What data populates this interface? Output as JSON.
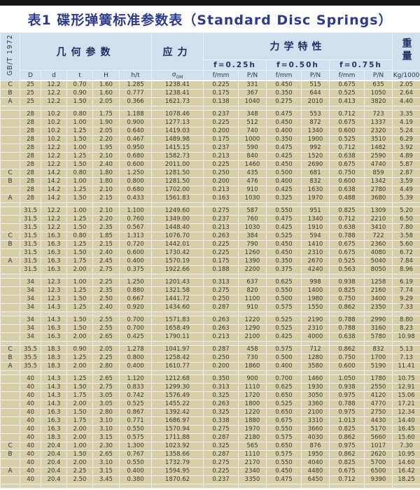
{
  "page": {
    "title": "表1 碟形弹簧标准参数表（Standard Disc Springs）"
  },
  "table": {
    "standard": "GB/T 1972",
    "header": {
      "geometry_label": "几何参数",
      "stress_label": "应力",
      "mechanical_label": "力学特性",
      "weight_label": "重量",
      "deflections": [
        "f=0.25h",
        "f=0.50h",
        "f=0.75h"
      ],
      "geo_cols": [
        "D",
        "d",
        "t",
        "H",
        "h/t"
      ],
      "sigma": "σ",
      "sigma_sub": "OM",
      "mech_cols": [
        "f/mm",
        "P/N",
        "f/mm",
        "P/N",
        "f/mm",
        "P/N"
      ],
      "weight_unit": "Kg/1000"
    },
    "rows": [
      {
        "label": "C",
        "cells": [
          "25",
          "12.2",
          "0.70",
          "1.60",
          "1.285",
          "1238.41",
          "0.225",
          "331",
          "0.450",
          "515",
          "0.675",
          "635",
          "2.05"
        ]
      },
      {
        "label": "B",
        "cells": [
          "25",
          "12.2",
          "0.90",
          "1.60",
          "0.777",
          "1238.41",
          "0.175",
          "367",
          "0.350",
          "644",
          "0.525",
          "1050",
          "2.64"
        ]
      },
      {
        "label": "A",
        "cells": [
          "25",
          "12.2",
          "1.50",
          "2.05",
          "0.366",
          "1621.73",
          "0.138",
          "1040",
          "0.275",
          "2010",
          "0.413",
          "3820",
          "4.40"
        ]
      },
      {
        "spacer": true
      },
      {
        "label": "",
        "cells": [
          "28",
          "10.2",
          "0.80",
          "1.75",
          "1.188",
          "1078.46",
          "0.237",
          "348",
          "0.475",
          "553",
          "0.712",
          "723",
          "3.35"
        ]
      },
      {
        "label": "",
        "cells": [
          "28",
          "10.2",
          "1.00",
          "1.90",
          "0.900",
          "1277.13",
          "0.225",
          "512",
          "0.450",
          "872",
          "0.675",
          "1337",
          "4.19"
        ]
      },
      {
        "label": "",
        "cells": [
          "28",
          "10.2",
          "1.25",
          "2.05",
          "0.640",
          "1419.03",
          "0.200",
          "740",
          "0.400",
          "1340",
          "0.600",
          "2320",
          "5.24"
        ]
      },
      {
        "label": "",
        "cells": [
          "28",
          "10.2",
          "1.50",
          "2.20",
          "0.467",
          "1489.98",
          "0.175",
          "1000",
          "0.350",
          "1900",
          "0.525",
          "3510",
          "6.29"
        ]
      },
      {
        "label": "",
        "cells": [
          "28",
          "12.2",
          "1.00",
          "1.95",
          "0.950",
          "1415.15",
          "0.237",
          "590",
          "0.475",
          "992",
          "0.712",
          "1482",
          "3.92"
        ]
      },
      {
        "label": "",
        "cells": [
          "28",
          "12.2",
          "1.25",
          "2.10",
          "0.680",
          "1582.73",
          "0.213",
          "840",
          "0.425",
          "1520",
          "0.638",
          "2590",
          "4.89"
        ]
      },
      {
        "label": "",
        "cells": [
          "28",
          "12.2",
          "1.50",
          "2.40",
          "0.600",
          "2011.00",
          "0.225",
          "1460",
          "0.450",
          "2690",
          "0.675",
          "4740",
          "5.87"
        ]
      },
      {
        "label": "C",
        "cells": [
          "28",
          "14.2",
          "0.80",
          "1.80",
          "1.250",
          "1281.50",
          "0.250",
          "435",
          "0.500",
          "681",
          "0.750",
          "859",
          "2.87"
        ]
      },
      {
        "label": "B",
        "cells": [
          "28",
          "14.2",
          "1.00",
          "1.80",
          "0.800",
          "1281.50",
          "0.200",
          "476",
          "0.400",
          "832",
          "0.600",
          "1342",
          "3.59"
        ]
      },
      {
        "label": "",
        "cells": [
          "28",
          "14.2",
          "1.25",
          "2.10",
          "0.680",
          "1702.00",
          "0.213",
          "910",
          "0.425",
          "1630",
          "0.638",
          "2780",
          "4.49"
        ]
      },
      {
        "label": "A",
        "cells": [
          "28",
          "14.2",
          "1.50",
          "2.15",
          "0.433",
          "1561.83",
          "0.163",
          "1030",
          "0.325",
          "1970",
          "0.488",
          "3680",
          "5.39"
        ]
      },
      {
        "spacer": true
      },
      {
        "label": "",
        "cells": [
          "31.5",
          "12.2",
          "1.00",
          "2.10",
          "1.100",
          "1249.60",
          "0.275",
          "587",
          "0.550",
          "951",
          "0.825",
          "1309",
          "5.20"
        ]
      },
      {
        "label": "",
        "cells": [
          "31.5",
          "12.2",
          "1.25",
          "2.20",
          "0.760",
          "1349.00",
          "0.237",
          "760",
          "0.475",
          "1340",
          "0.712",
          "2210",
          "6.50"
        ]
      },
      {
        "label": "",
        "cells": [
          "31.5",
          "12.2",
          "1.50",
          "2.35",
          "0.567",
          "1448.40",
          "0.213",
          "1030",
          "0.425",
          "1910",
          "0.638",
          "3410",
          "7.80"
        ]
      },
      {
        "label": "C",
        "cells": [
          "31.5",
          "16.3",
          "0.80",
          "1.85",
          "1.313",
          "1076.70",
          "0.263",
          "384",
          "0.525",
          "594",
          "0.788",
          "722",
          "3.58"
        ]
      },
      {
        "label": "B",
        "cells": [
          "31.5",
          "16.3",
          "1.25",
          "2.15",
          "0.720",
          "1442.01",
          "0.225",
          "790",
          "0.450",
          "1410",
          "0.675",
          "2360",
          "5.60"
        ]
      },
      {
        "label": "",
        "cells": [
          "31.5",
          "16.3",
          "1.50",
          "2.40",
          "0.600",
          "1730.42",
          "0.225",
          "1260",
          "0.450",
          "2310",
          "0.675",
          "4080",
          "6.72"
        ]
      },
      {
        "label": "A",
        "cells": [
          "31.5",
          "16.3",
          "1.75",
          "2.45",
          "0.400",
          "1570.19",
          "0.175",
          "1390",
          "0.350",
          "2670",
          "0.525",
          "5040",
          "7.84"
        ]
      },
      {
        "label": "",
        "cells": [
          "31.5",
          "16.3",
          "2.00",
          "2.75",
          "0.375",
          "1922.66",
          "0.188",
          "2200",
          "0.375",
          "4240",
          "0.563",
          "8050",
          "8.96"
        ]
      },
      {
        "spacer": true
      },
      {
        "label": "",
        "cells": [
          "34",
          "12.3",
          "1.00",
          "2.25",
          "1.250",
          "1201.43",
          "0.313",
          "637",
          "0.625",
          "998",
          "0.938",
          "1258",
          "6.19"
        ]
      },
      {
        "label": "",
        "cells": [
          "34",
          "12.3",
          "1.25",
          "2.35",
          "0.880",
          "1321.58",
          "0.275",
          "820",
          "0.550",
          "1400",
          "0.825",
          "2160",
          "7.74"
        ]
      },
      {
        "label": "",
        "cells": [
          "34",
          "12.3",
          "1.50",
          "2.50",
          "0.667",
          "1441.72",
          "0.250",
          "1100",
          "0.500",
          "1980",
          "0.750",
          "3400",
          "9.29"
        ]
      },
      {
        "label": "",
        "cells": [
          "34",
          "14.3",
          "1.25",
          "2.40",
          "0.920",
          "1434.60",
          "0.287",
          "910",
          "0.575",
          "1550",
          "0.862",
          "2350",
          "7.33"
        ]
      },
      {
        "spacer": true
      },
      {
        "label": "",
        "cells": [
          "34",
          "14.3",
          "1.50",
          "2.55",
          "0.700",
          "1571.83",
          "0.263",
          "1220",
          "0.525",
          "2190",
          "0.788",
          "2990",
          "8.80"
        ]
      },
      {
        "label": "",
        "cells": [
          "34",
          "16.3",
          "1.50",
          "2.55",
          "0.700",
          "1658.49",
          "0.263",
          "1290",
          "0.525",
          "2310",
          "0.788",
          "3160",
          "8.23"
        ]
      },
      {
        "label": "",
        "cells": [
          "34",
          "16.3",
          "2.00",
          "2.65",
          "0.425",
          "1790.11",
          "0.213",
          "2100",
          "0.425",
          "4000",
          "0.638",
          "5780",
          "10.98"
        ]
      },
      {
        "spacer": true
      },
      {
        "label": "C",
        "cells": [
          "35.5",
          "18.3",
          "0.90",
          "2.05",
          "1.278",
          "1041.97",
          "0.287",
          "458",
          "0.575",
          "712",
          "0.862",
          "832",
          "5.13"
        ]
      },
      {
        "label": "B",
        "cells": [
          "35.5",
          "18.3",
          "1.25",
          "2.25",
          "0.800",
          "1258.42",
          "0.250",
          "730",
          "0.500",
          "1280",
          "0.750",
          "1700",
          "7.13"
        ]
      },
      {
        "label": "A",
        "cells": [
          "35.5",
          "18.3",
          "2.00",
          "2.80",
          "0.400",
          "1610.77",
          "0.200",
          "1860",
          "0.400",
          "3580",
          "0.600",
          "5190",
          "11.41"
        ]
      },
      {
        "spacer": true
      },
      {
        "label": "",
        "cells": [
          "40",
          "14.3",
          "1.25",
          "2.65",
          "1.120",
          "1212.68",
          "0.350",
          "900",
          "0.700",
          "1460",
          "1.050",
          "1780",
          "10.75"
        ]
      },
      {
        "label": "",
        "cells": [
          "40",
          "14.3",
          "1.50",
          "2.75",
          "0.833",
          "1299.30",
          "0.313",
          "1110",
          "0.625",
          "1930",
          "0.938",
          "2550",
          "12.91"
        ]
      },
      {
        "label": "",
        "cells": [
          "40",
          "14.3",
          "1.75",
          "3.05",
          "0.742",
          "1576.49",
          "0.325",
          "1720",
          "0.650",
          "3050",
          "0.975",
          "4120",
          "15.06"
        ]
      },
      {
        "label": "",
        "cells": [
          "40",
          "14.3",
          "2.00",
          "3.05",
          "0.525",
          "1455.22",
          "0.263",
          "1800",
          "0.525",
          "3360",
          "0.788",
          "4770",
          "17.21"
        ]
      },
      {
        "label": "",
        "cells": [
          "40",
          "16.3",
          "1.50",
          "2.80",
          "0.867",
          "1392.42",
          "0.325",
          "1220",
          "0.650",
          "2100",
          "0.975",
          "2750",
          "12.34"
        ]
      },
      {
        "label": "",
        "cells": [
          "40",
          "16.3",
          "1.75",
          "3.10",
          "0.771",
          "1686.97",
          "0.338",
          "1880",
          "0.675",
          "3310",
          "1.013",
          "4430",
          "14.40"
        ]
      },
      {
        "label": "",
        "cells": [
          "40",
          "16.3",
          "2.00",
          "3.10",
          "0.550",
          "1570.94",
          "0.275",
          "1970",
          "0.550",
          "3660",
          "0.825",
          "5170",
          "16.45"
        ]
      },
      {
        "label": "",
        "cells": [
          "40",
          "18.3",
          "2.00",
          "3.15",
          "0.575",
          "1711.88",
          "0.287",
          "2180",
          "0.575",
          "4030",
          "0.862",
          "5660",
          "15.60"
        ]
      },
      {
        "label": "C",
        "cells": [
          "40",
          "20.4",
          "1.00",
          "2.30",
          "1.300",
          "1023.92",
          "0.325",
          "565",
          "0.650",
          "876",
          "0.975",
          "1017",
          "7.30"
        ]
      },
      {
        "label": "B",
        "cells": [
          "40",
          "20.4",
          "1.50",
          "2.65",
          "0.767",
          "1358.66",
          "0.287",
          "1110",
          "0.575",
          "1950",
          "0.862",
          "2620",
          "10.95"
        ]
      },
      {
        "label": "",
        "cells": [
          "40",
          "20.4",
          "2.00",
          "3.10",
          "0.550",
          "1732.79",
          "0.275",
          "2170",
          "0.550",
          "4040",
          "0.825",
          "5700",
          "14.60"
        ]
      },
      {
        "label": "A",
        "cells": [
          "40",
          "20.4",
          "2.25",
          "3.15",
          "0.400",
          "1594.95",
          "0.225",
          "2340",
          "0.450",
          "4480",
          "0.675",
          "6500",
          "16.42"
        ]
      },
      {
        "label": "",
        "cells": [
          "40",
          "20.4",
          "2.50",
          "3.45",
          "0.380",
          "1870.62",
          "0.237",
          "3350",
          "0.475",
          "6450",
          "0.712",
          "9390",
          "18.25"
        ]
      },
      {
        "spacer": true
      }
    ]
  },
  "colors": {
    "header_bg": "#cfe0ef",
    "cell_bg": "#d7cfa7",
    "title_text": "#2c3a8f",
    "top_bar": "#161616"
  }
}
